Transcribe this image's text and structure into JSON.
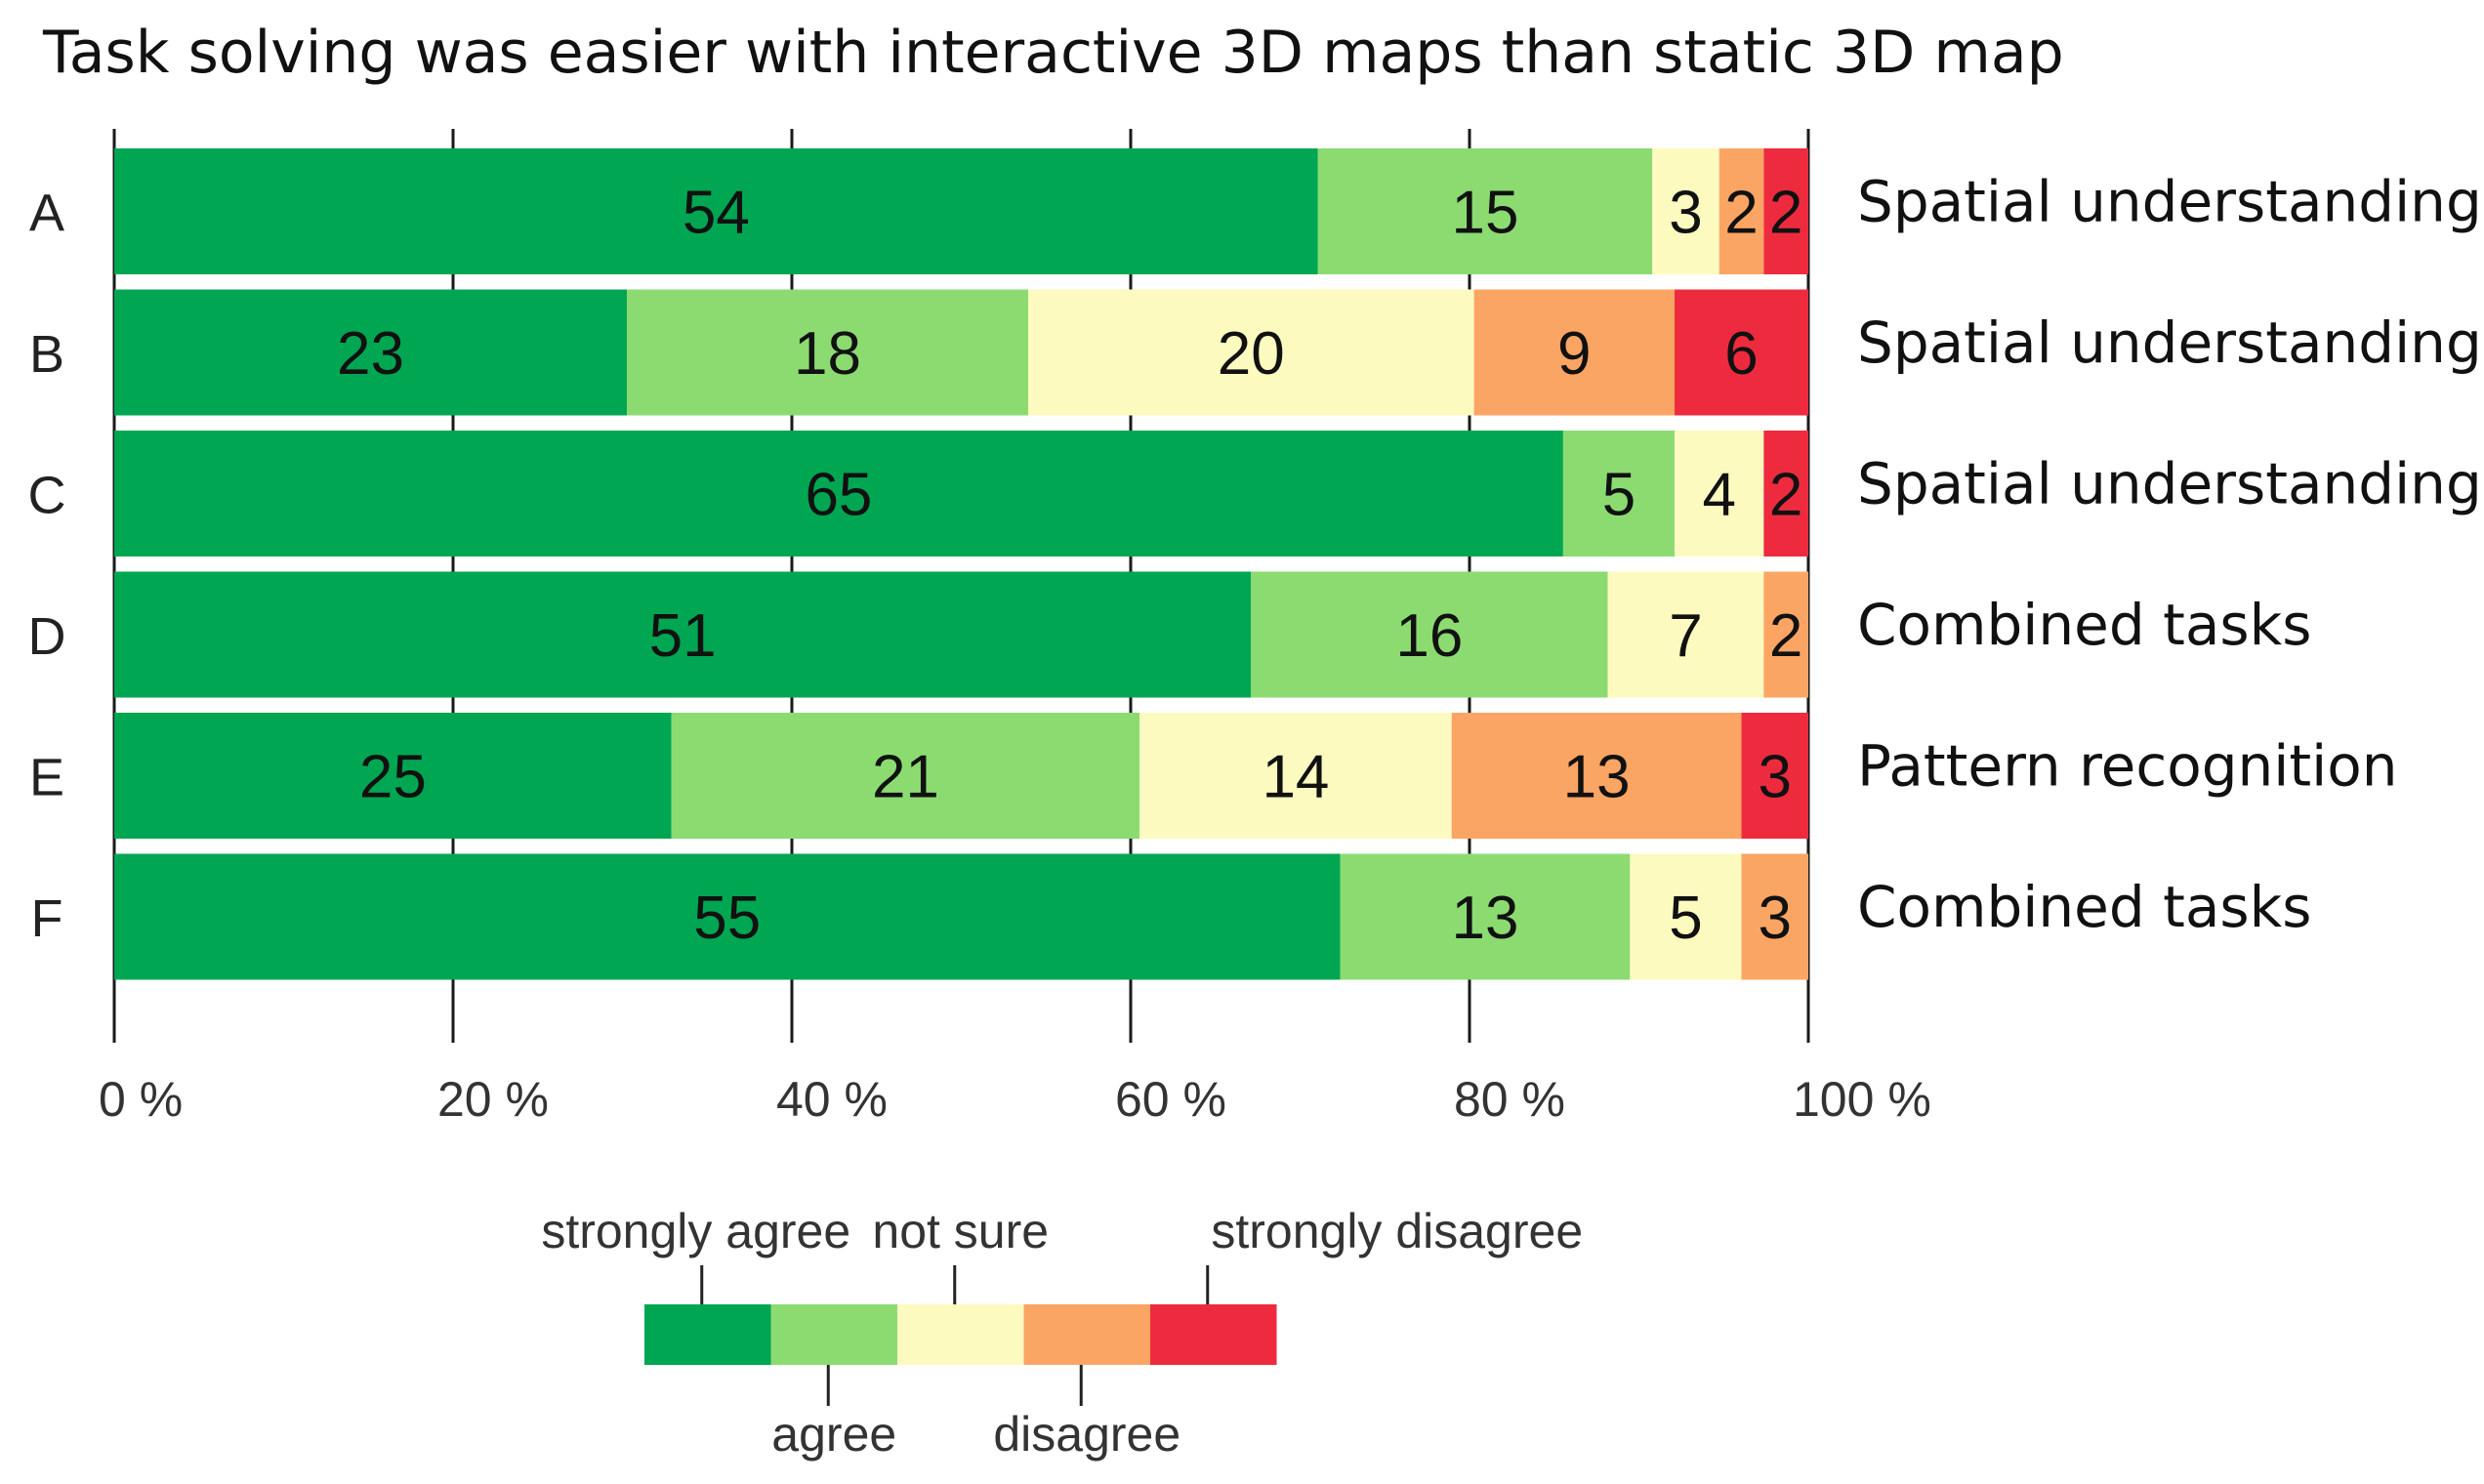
{
  "chart_data": {
    "type": "bar",
    "orientation": "horizontal",
    "stacked": true,
    "normalized": true,
    "title": "Task solving was easier with interactive 3D maps than static 3D map",
    "categories": [
      "A",
      "B",
      "C",
      "D",
      "E",
      "F"
    ],
    "descriptions": [
      "Spatial understanding",
      "Spatial understanding",
      "Spatial understanding",
      "Combined tasks",
      "Pattern recognition",
      "Combined tasks"
    ],
    "series": [
      {
        "name": "strongly agree",
        "color": "#00A651",
        "values": [
          54,
          23,
          65,
          51,
          25,
          55
        ]
      },
      {
        "name": "agree",
        "color": "#8BDB71",
        "values": [
          15,
          18,
          5,
          16,
          21,
          13
        ]
      },
      {
        "name": "not sure",
        "color": "#FDFAC0",
        "values": [
          3,
          20,
          4,
          7,
          14,
          5
        ]
      },
      {
        "name": "disagree",
        "color": "#FBA564",
        "values": [
          2,
          9,
          0,
          2,
          13,
          3
        ]
      },
      {
        "name": "strongly disagree",
        "color": "#EE2B3E",
        "values": [
          2,
          6,
          2,
          0,
          3,
          0
        ]
      }
    ],
    "x_ticks": [
      "0 %",
      "20 %",
      "40 %",
      "60 %",
      "80 %",
      "100 %"
    ],
    "x_range": [
      0,
      100
    ],
    "legend_position": "bottom-center",
    "grid": true
  }
}
